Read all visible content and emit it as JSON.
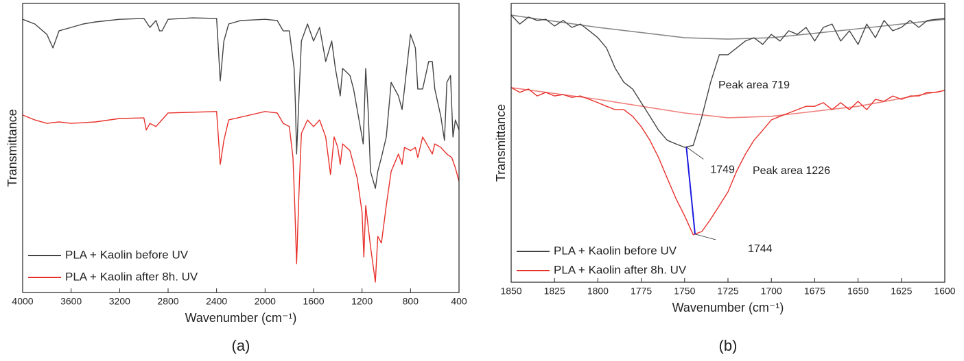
{
  "chart_data": [
    {
      "type": "line",
      "caption": "(a)",
      "xlabel": "Wavenumber (cm⁻¹)",
      "ylabel": "Transmittance",
      "xlim": [
        4000,
        400
      ],
      "xticks": [
        4000,
        3600,
        3200,
        2800,
        2400,
        2000,
        1600,
        1200,
        800,
        400
      ],
      "ylim": [
        0,
        100
      ],
      "legend": "lower left",
      "series": [
        {
          "name": "PLA + Kaolin before UV",
          "color": "#444444",
          "x": [
            4000,
            3900,
            3800,
            3750,
            3700,
            3600,
            3500,
            3400,
            3200,
            3000,
            2950,
            2900,
            2870,
            2850,
            2800,
            2600,
            2400,
            2370,
            2340,
            2300,
            2200,
            2000,
            1900,
            1850,
            1800,
            1760,
            1750,
            1740,
            1720,
            1700,
            1650,
            1600,
            1550,
            1500,
            1450,
            1420,
            1380,
            1360,
            1300,
            1270,
            1240,
            1200,
            1190,
            1170,
            1150,
            1130,
            1090,
            1070,
            1040,
            1000,
            960,
            900,
            870,
            850,
            800,
            760,
            740,
            700,
            650,
            620,
            600,
            550,
            520,
            500,
            470,
            450,
            430,
            400
          ],
          "values": [
            94.5,
            92.9,
            89.3,
            84.6,
            90.5,
            91.7,
            92.9,
            93.6,
            94.5,
            94.8,
            91.7,
            94.1,
            90.5,
            90.5,
            94.5,
            95.0,
            94.8,
            73.2,
            87.0,
            92.9,
            94.1,
            94.5,
            94.1,
            90.5,
            90.5,
            77.5,
            65.6,
            47.9,
            68.0,
            87.0,
            92.9,
            87.0,
            91.7,
            79.9,
            87.0,
            77.5,
            68.0,
            77.5,
            75.1,
            70.4,
            63.3,
            53.8,
            51.4,
            77.5,
            63.3,
            41.9,
            36.0,
            41.9,
            46.7,
            53.8,
            72.7,
            68.0,
            63.3,
            70.4,
            89.3,
            84.6,
            70.4,
            70.4,
            79.9,
            79.9,
            70.4,
            60.9,
            52.6,
            72.7,
            75.1,
            53.8,
            59.7,
            56.2
          ]
        },
        {
          "name": "PLA + Kaolin after 8h. UV",
          "color": "#e8302a",
          "x": [
            4000,
            3900,
            3800,
            3700,
            3600,
            3400,
            3200,
            3000,
            2980,
            2950,
            2900,
            2800,
            2400,
            2370,
            2340,
            2300,
            2000,
            1900,
            1850,
            1800,
            1770,
            1755,
            1740,
            1720,
            1700,
            1650,
            1600,
            1550,
            1500,
            1460,
            1430,
            1400,
            1380,
            1360,
            1300,
            1270,
            1240,
            1200,
            1185,
            1170,
            1150,
            1130,
            1090,
            1070,
            1040,
            1000,
            960,
            900,
            870,
            850,
            800,
            760,
            740,
            700,
            650,
            620,
            600,
            550,
            500,
            460,
            430,
            400
          ],
          "values": [
            61.4,
            59.7,
            58.5,
            59.0,
            58.5,
            59.0,
            60.2,
            60.4,
            56.2,
            58.5,
            57.4,
            62.1,
            62.6,
            44.3,
            52.6,
            59.7,
            62.6,
            62.1,
            58.5,
            57.4,
            46.7,
            30.1,
            10.0,
            34.8,
            55.0,
            59.7,
            57.4,
            59.7,
            53.8,
            40.8,
            53.8,
            50.2,
            44.3,
            51.4,
            49.1,
            44.3,
            39.6,
            27.7,
            12.3,
            30.1,
            23.0,
            15.9,
            3.6,
            19.4,
            17.1,
            30.1,
            41.9,
            47.9,
            44.3,
            50.2,
            49.1,
            50.2,
            46.7,
            53.8,
            50.2,
            47.9,
            51.4,
            50.2,
            47.9,
            46.7,
            43.1,
            38.4
          ]
        }
      ]
    },
    {
      "type": "line",
      "caption": "(b)",
      "xlabel": "Wavenumber (cm⁻¹)",
      "ylabel": "Transmittance",
      "xlim": [
        1850,
        1600
      ],
      "xticks": [
        1850,
        1825,
        1800,
        1775,
        1750,
        1725,
        1700,
        1675,
        1650,
        1625,
        1600
      ],
      "ylim": [
        0,
        100
      ],
      "legend": "lower left",
      "series": [
        {
          "name": "PLA + Kaolin before UV",
          "color": "#444444",
          "x": [
            1850,
            1845,
            1840,
            1835,
            1830,
            1825,
            1820,
            1815,
            1810,
            1805,
            1800,
            1795,
            1790,
            1785,
            1780,
            1775,
            1770,
            1765,
            1760,
            1755,
            1750,
            1745,
            1740,
            1735,
            1730,
            1725,
            1720,
            1715,
            1710,
            1705,
            1700,
            1695,
            1690,
            1685,
            1680,
            1675,
            1670,
            1665,
            1660,
            1655,
            1650,
            1645,
            1640,
            1635,
            1630,
            1625,
            1620,
            1615,
            1610,
            1605,
            1600
          ],
          "values": [
            95.8,
            92.6,
            95.1,
            93.9,
            94.3,
            91.9,
            93.9,
            91.4,
            92.6,
            90.2,
            87.7,
            84.0,
            76.7,
            71.7,
            69.3,
            64.4,
            59.5,
            54.5,
            50.9,
            49.6,
            48.4,
            49.1,
            59.5,
            71.7,
            81.6,
            81.6,
            84.0,
            86.5,
            87.7,
            85.3,
            88.9,
            86.5,
            90.2,
            88.9,
            91.4,
            86.5,
            91.4,
            92.6,
            86.5,
            90.2,
            85.3,
            92.6,
            87.7,
            93.9,
            90.2,
            91.4,
            93.9,
            91.4,
            93.9,
            94.3,
            94.6
          ]
        },
        {
          "name": "PLA + Kaolin after 8h. UV",
          "color": "#e8302a",
          "x": [
            1850,
            1845,
            1840,
            1835,
            1830,
            1825,
            1820,
            1815,
            1810,
            1805,
            1800,
            1795,
            1790,
            1785,
            1780,
            1775,
            1770,
            1765,
            1760,
            1755,
            1750,
            1745,
            1740,
            1735,
            1730,
            1725,
            1720,
            1715,
            1710,
            1705,
            1700,
            1695,
            1690,
            1685,
            1680,
            1675,
            1670,
            1665,
            1660,
            1655,
            1650,
            1645,
            1640,
            1635,
            1630,
            1625,
            1620,
            1615,
            1610,
            1605,
            1600
          ],
          "values": [
            69.8,
            68.1,
            69.3,
            66.8,
            68.1,
            66.8,
            67.3,
            66.3,
            66.8,
            65.6,
            64.4,
            63.1,
            61.9,
            61.9,
            59.5,
            55.8,
            50.9,
            44.7,
            37.3,
            30.0,
            23.8,
            17.0,
            18.2,
            22.6,
            27.5,
            32.4,
            39.8,
            45.9,
            50.9,
            54.5,
            58.2,
            59.5,
            60.7,
            61.9,
            63.1,
            63.1,
            64.4,
            61.9,
            64.4,
            61.9,
            64.9,
            61.9,
            65.6,
            64.9,
            66.8,
            65.6,
            66.8,
            66.8,
            68.1,
            68.1,
            68.8
          ]
        }
      ],
      "baselines": [
        {
          "color": "#888888",
          "x": [
            1850,
            1800,
            1750,
            1725,
            1700,
            1650,
            1600
          ],
          "values": [
            95.8,
            91.4,
            87.7,
            87.2,
            87.7,
            90.9,
            94.3
          ]
        },
        {
          "color": "#f07f7a",
          "x": [
            1850,
            1800,
            1750,
            1725,
            1700,
            1650,
            1600
          ],
          "values": [
            69.8,
            65.6,
            60.7,
            59.0,
            59.5,
            63.1,
            68.8
          ]
        }
      ],
      "peak_areas": [
        "Peak area 719",
        "Peak area 1226"
      ],
      "peaks": [
        1749,
        1744
      ],
      "peak_color": "#1a1adf"
    }
  ]
}
